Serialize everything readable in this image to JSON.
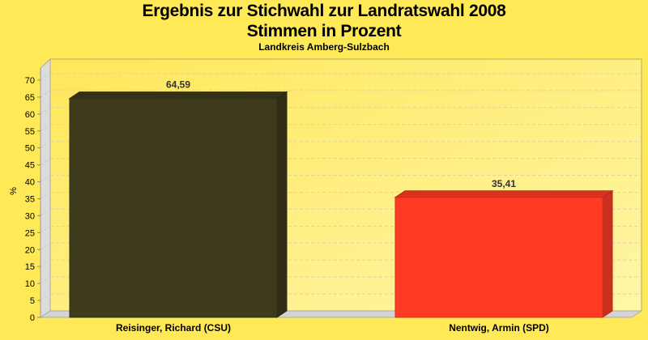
{
  "chart_data": {
    "type": "bar",
    "title": "Ergebnis zur Stichwahl zur Landratswahl 2008",
    "subtitle": "Stimmen in Prozent",
    "subsubtitle": "Landkreis Amberg-Sulzbach",
    "categories": [
      "Reisinger, Richard (CSU)",
      "Nentwig, Armin (SPD)"
    ],
    "values": [
      64.59,
      35.41
    ],
    "value_labels": [
      "64,59",
      "35,41"
    ],
    "colors": [
      "#3e3a1c",
      "#ff3b24"
    ],
    "xlabel": "",
    "ylabel": "%",
    "ylim": [
      0,
      70
    ],
    "yticks": [
      0,
      5,
      10,
      15,
      20,
      25,
      30,
      35,
      40,
      45,
      50,
      55,
      60,
      65,
      70
    ],
    "grid": true,
    "legend": "none",
    "style": "3d"
  },
  "header": {
    "title": "Ergebnis zur Stichwahl zur Landratswahl 2008",
    "subtitle": "Stimmen in Prozent",
    "region": "Landkreis Amberg-Sulzbach"
  },
  "axis": {
    "ylabel": "%"
  }
}
